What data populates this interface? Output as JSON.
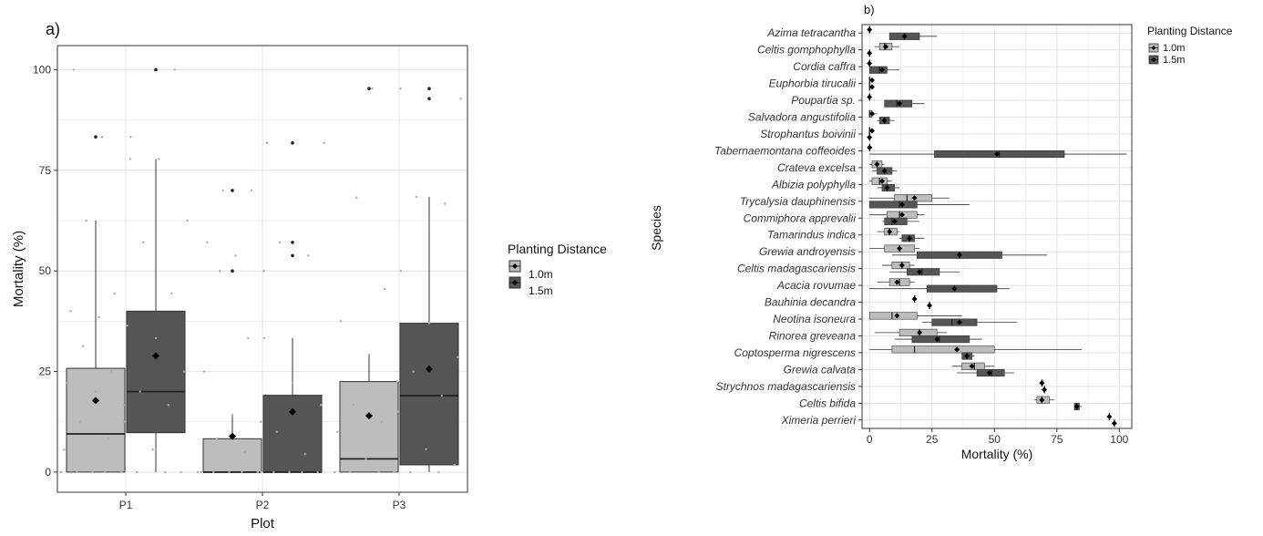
{
  "colors": {
    "d1": "#bdbdbd",
    "d15": "#555555",
    "grid": "#e3e3e3",
    "panel_border": "#333333",
    "text": "#333333",
    "mean_marker": "#000000"
  },
  "chart_data": [
    {
      "panel_label": "a)",
      "type": "box",
      "xlabel": "Plot",
      "ylabel": "Mortality (%)",
      "ylim": [
        -5,
        106
      ],
      "yticks": [
        0,
        25,
        50,
        75,
        100
      ],
      "grid": true,
      "legend": {
        "title": "Planting Distance",
        "position": "right",
        "entries": [
          "1.0m",
          "1.5m"
        ]
      },
      "categories": [
        "P1",
        "P2",
        "P3"
      ],
      "series": [
        {
          "name": "1.0m",
          "boxes": [
            {
              "category": "P1",
              "min": 0,
              "q1": 0,
              "median": 9.5,
              "q3": 25.8,
              "max": 62.5,
              "mean": 17.8,
              "outliers": [
                83.3
              ]
            },
            {
              "category": "P2",
              "min": 0,
              "q1": 0,
              "median": 0,
              "q3": 8.3,
              "max": 14.2,
              "mean": 8.9,
              "outliers": [
                50,
                70
              ]
            },
            {
              "category": "P3",
              "min": 0,
              "q1": 0,
              "median": 3.3,
              "q3": 22.5,
              "max": 29.2,
              "mean": 14.0,
              "outliers": [
                95.3
              ]
            }
          ],
          "points": [
            {
              "category": "P1",
              "values": [
                0,
                0,
                0,
                0,
                0,
                5.6,
                8.3,
                12.5,
                16.7,
                20,
                22.2,
                25,
                31.3,
                33.3,
                38.5,
                40,
                44.4,
                62.5,
                77.8,
                83.3,
                100
              ]
            },
            {
              "category": "P2",
              "values": [
                0,
                0,
                0,
                0,
                0,
                0,
                5,
                8.3,
                12.5,
                14.2,
                25,
                33.3,
                50,
                50,
                53.8,
                57.1,
                70,
                70,
                81.8
              ]
            },
            {
              "category": "P3",
              "values": [
                0,
                0,
                0,
                0,
                3.3,
                10,
                12.5,
                16.7,
                22.5,
                29.2,
                37.5,
                45.5,
                68.2,
                95.3,
                95.3
              ]
            }
          ]
        },
        {
          "name": "1.5m",
          "boxes": [
            {
              "category": "P1",
              "min": 0,
              "q1": 9.8,
              "median": 20,
              "q3": 40,
              "max": 77.8,
              "mean": 28.9,
              "outliers": [
                100
              ]
            },
            {
              "category": "P2",
              "min": 0,
              "q1": 0,
              "median": 0,
              "q3": 19.1,
              "max": 33.3,
              "mean": 15.0,
              "outliers": [
                53.8,
                57.1,
                81.8
              ]
            },
            {
              "category": "P3",
              "min": 0,
              "q1": 1.8,
              "median": 19,
              "q3": 37,
              "max": 68.4,
              "mean": 25.6,
              "outliers": [
                92.8,
                95.3
              ]
            }
          ],
          "points": [
            {
              "category": "P1",
              "values": [
                0,
                0,
                0,
                0,
                5.6,
                12.5,
                16.7,
                20,
                25,
                33.3,
                36.4,
                44.4,
                57.1,
                62.5,
                77.8,
                83.3,
                100
              ]
            },
            {
              "category": "P2",
              "values": [
                0,
                0,
                0,
                0,
                0,
                0,
                4.5,
                10,
                16.7,
                22.2,
                33.3,
                53.8,
                57.1,
                81.8
              ]
            },
            {
              "category": "P3",
              "values": [
                0,
                0,
                0,
                1.8,
                5.7,
                15,
                19,
                25,
                28.6,
                37,
                50,
                66.7,
                68.4,
                92.8
              ]
            }
          ]
        }
      ]
    },
    {
      "panel_label": "b)",
      "type": "box",
      "orientation": "horizontal",
      "xlabel": "Mortality (%)",
      "ylabel": "Species",
      "xlim": [
        -3,
        105
      ],
      "xticks": [
        0,
        25,
        50,
        75,
        100
      ],
      "grid": true,
      "legend": {
        "title": "Planting Distance",
        "position": "top-right",
        "entries": [
          "1.0m",
          "1.5m"
        ]
      },
      "categories": [
        "Azima tetracantha",
        "Celtis gomphophylla",
        "Cordia caffra",
        "Euphorbia tirucalii",
        "Poupartia sp.",
        "Salvadora angustifolia",
        "Strophantus boivinii",
        "Tabernaemontana coffeoides",
        "Crateva excelsa",
        "Albizia polyphylla",
        "Trycalysia dauphinensis",
        "Commiphora apprevalii",
        "Tamarindus indica",
        "Grewia androyensis",
        "Celtis madagascariensis",
        "Acacia rovumae",
        "Bauhinia decandra",
        "Neotina isoneura",
        "Rinorea greveana",
        "Coptosperma nigrescens",
        "Grewia calvata",
        "Strychnos madagascariensis",
        "Celtis bifida",
        "Ximeria perrieri"
      ],
      "series": [
        {
          "name": "1.0m",
          "boxes": [
            {
              "category": "Azima tetracantha",
              "min": 0,
              "q1": 0,
              "median": 0,
              "q3": 0,
              "max": 0,
              "mean": 0
            },
            {
              "category": "Celtis gomphophylla",
              "min": 2,
              "q1": 4,
              "median": 6,
              "q3": 9,
              "max": 12,
              "mean": 6.5
            },
            {
              "category": "Cordia caffra",
              "min": 0,
              "q1": 0,
              "median": 0,
              "q3": 0,
              "max": 0,
              "mean": 0
            },
            {
              "category": "Euphorbia tirucalii",
              "min": 0,
              "q1": 0,
              "median": 0,
              "q3": 0,
              "max": 0,
              "mean": 1
            },
            {
              "category": "Poupartia sp.",
              "min": 0,
              "q1": 0,
              "median": 0,
              "q3": 0,
              "max": 0,
              "mean": 0
            },
            {
              "category": "Salvadora angustifolia",
              "min": 0,
              "q1": 0,
              "median": 0,
              "q3": 1,
              "max": 3,
              "mean": 1
            },
            {
              "category": "Strophantus boivinii",
              "min": 0,
              "q1": 0,
              "median": 0,
              "q3": 0,
              "max": 0,
              "mean": 1
            },
            {
              "category": "Tabernaemontana coffeoides",
              "min": 0,
              "q1": 0,
              "median": 0,
              "q3": 0,
              "max": 0,
              "mean": 0
            },
            {
              "category": "Crateva excelsa",
              "min": 0,
              "q1": 1,
              "median": 3,
              "q3": 5,
              "max": 6,
              "mean": 3
            },
            {
              "category": "Albizia polyphylla",
              "min": 0,
              "q1": 1,
              "median": 4,
              "q3": 7,
              "max": 9,
              "mean": 5
            },
            {
              "category": "Trycalysia dauphinensis",
              "min": 0,
              "q1": 10,
              "median": 15,
              "q3": 25,
              "max": 32,
              "mean": 18
            },
            {
              "category": "Commiphora apprevalii",
              "min": 0,
              "q1": 7,
              "median": 12,
              "q3": 19,
              "max": 22,
              "mean": 13
            },
            {
              "category": "Tamarindus indica",
              "min": 3,
              "q1": 6,
              "median": 8,
              "q3": 11,
              "max": 12,
              "mean": 8
            },
            {
              "category": "Grewia androyensis",
              "min": 0,
              "q1": 6,
              "median": 12,
              "q3": 18,
              "max": 20,
              "mean": 12
            },
            {
              "category": "Celtis madagascariensis",
              "min": 5,
              "q1": 9,
              "median": 13,
              "q3": 16,
              "max": 18,
              "mean": 13
            },
            {
              "category": "Acacia rovumae",
              "min": 3,
              "q1": 8,
              "median": 12,
              "q3": 16,
              "max": 18,
              "mean": 11
            },
            {
              "category": "Bauhinia decandra",
              "min": 18,
              "q1": 18,
              "median": 18,
              "q3": 18,
              "max": 18,
              "mean": 18
            },
            {
              "category": "Neotina isoneura",
              "min": 0,
              "q1": 0,
              "median": 9,
              "q3": 19,
              "max": 37,
              "mean": 11
            },
            {
              "category": "Rinorea greveana",
              "min": 2,
              "q1": 12,
              "median": 20,
              "q3": 27,
              "max": 31,
              "mean": 20
            },
            {
              "category": "Coptosperma nigrescens",
              "min": 0,
              "q1": 9,
              "median": 18,
              "q3": 50,
              "max": 85,
              "mean": 35
            },
            {
              "category": "Grewia calvata",
              "min": 33,
              "q1": 37,
              "median": 42,
              "q3": 46,
              "max": 50,
              "mean": 41
            },
            {
              "category": "Strychnos madagascariensis",
              "min": 69,
              "q1": 69,
              "median": 69,
              "q3": 69,
              "max": 69,
              "mean": 69
            },
            {
              "category": "Celtis bifida",
              "min": 66,
              "q1": 67,
              "median": 69,
              "q3": 72,
              "max": 74,
              "mean": 69
            },
            {
              "category": "Ximeria perrieri",
              "min": 96,
              "q1": 96,
              "median": 96,
              "q3": 96,
              "max": 96,
              "mean": 96
            }
          ]
        },
        {
          "name": "1.5m",
          "boxes": [
            {
              "category": "Azima tetracantha",
              "min": 8,
              "q1": 8,
              "median": 14,
              "q3": 20,
              "max": 27,
              "mean": 14
            },
            {
              "category": "Celtis gomphophylla",
              "min": 0,
              "q1": 0,
              "median": 0,
              "q3": 0,
              "max": 0,
              "mean": 0
            },
            {
              "category": "Cordia caffra",
              "min": 0,
              "q1": 0,
              "median": 4,
              "q3": 7,
              "max": 12,
              "mean": 5
            },
            {
              "category": "Euphorbia tirucalii",
              "min": 0,
              "q1": 0,
              "median": 0,
              "q3": 0,
              "max": 0,
              "mean": 1
            },
            {
              "category": "Poupartia sp.",
              "min": 6,
              "q1": 6,
              "median": 11,
              "q3": 17,
              "max": 22,
              "mean": 12
            },
            {
              "category": "Salvadora angustifolia",
              "min": 3,
              "q1": 4,
              "median": 6,
              "q3": 8,
              "max": 10,
              "mean": 6
            },
            {
              "category": "Strophantus boivinii",
              "min": 0,
              "q1": 0,
              "median": 0,
              "q3": 0,
              "max": 0,
              "mean": 0
            },
            {
              "category": "Tabernaemontana coffeoides",
              "min": 0,
              "q1": 26,
              "median": 52,
              "q3": 78,
              "max": 103,
              "mean": 51
            },
            {
              "category": "Crateva excelsa",
              "min": 1,
              "q1": 3,
              "median": 6,
              "q3": 9,
              "max": 11,
              "mean": 6
            },
            {
              "category": "Albizia polyphylla",
              "min": 3,
              "q1": 5,
              "median": 7,
              "q3": 10,
              "max": 12,
              "mean": 7
            },
            {
              "category": "Trycalysia dauphinensis",
              "min": 0,
              "q1": 0,
              "median": 12,
              "q3": 19,
              "max": 40,
              "mean": 13
            },
            {
              "category": "Commiphora apprevalii",
              "min": 5,
              "q1": 6,
              "median": 9,
              "q3": 15,
              "max": 20,
              "mean": 10
            },
            {
              "category": "Tamarindus indica",
              "min": 12,
              "q1": 13,
              "median": 16,
              "q3": 18,
              "max": 22,
              "mean": 16
            },
            {
              "category": "Grewia androyensis",
              "min": 9,
              "q1": 19,
              "median": 36,
              "q3": 53,
              "max": 71,
              "mean": 36
            },
            {
              "category": "Celtis madagascariensis",
              "min": 8,
              "q1": 15,
              "median": 21,
              "q3": 28,
              "max": 36,
              "mean": 20
            },
            {
              "category": "Acacia rovumae",
              "min": 0,
              "q1": 23,
              "median": 34,
              "q3": 51,
              "max": 56,
              "mean": 34
            },
            {
              "category": "Bauhinia decandra",
              "min": 24,
              "q1": 24,
              "median": 24,
              "q3": 24,
              "max": 24,
              "mean": 24
            },
            {
              "category": "Neotina isoneura",
              "min": 21,
              "q1": 25,
              "median": 33,
              "q3": 43,
              "max": 59,
              "mean": 36
            },
            {
              "category": "Rinorea greveana",
              "min": 10,
              "q1": 17,
              "median": 28,
              "q3": 40,
              "max": 45,
              "mean": 27
            },
            {
              "category": "Coptosperma nigrescens",
              "min": 37,
              "q1": 37,
              "median": 39,
              "q3": 41,
              "max": 42,
              "mean": 39
            },
            {
              "category": "Grewia calvata",
              "min": 35,
              "q1": 43,
              "median": 49,
              "q3": 54,
              "max": 58,
              "mean": 48
            },
            {
              "category": "Strychnos madagascariensis",
              "min": 70,
              "q1": 70,
              "median": 70,
              "q3": 70,
              "max": 70,
              "mean": 70
            },
            {
              "category": "Celtis bifida",
              "min": 82,
              "q1": 82,
              "median": 83,
              "q3": 84,
              "max": 85,
              "mean": 83
            },
            {
              "category": "Ximeria perrieri",
              "min": 98,
              "q1": 98,
              "median": 98,
              "q3": 98,
              "max": 98,
              "mean": 98
            }
          ]
        }
      ]
    }
  ]
}
